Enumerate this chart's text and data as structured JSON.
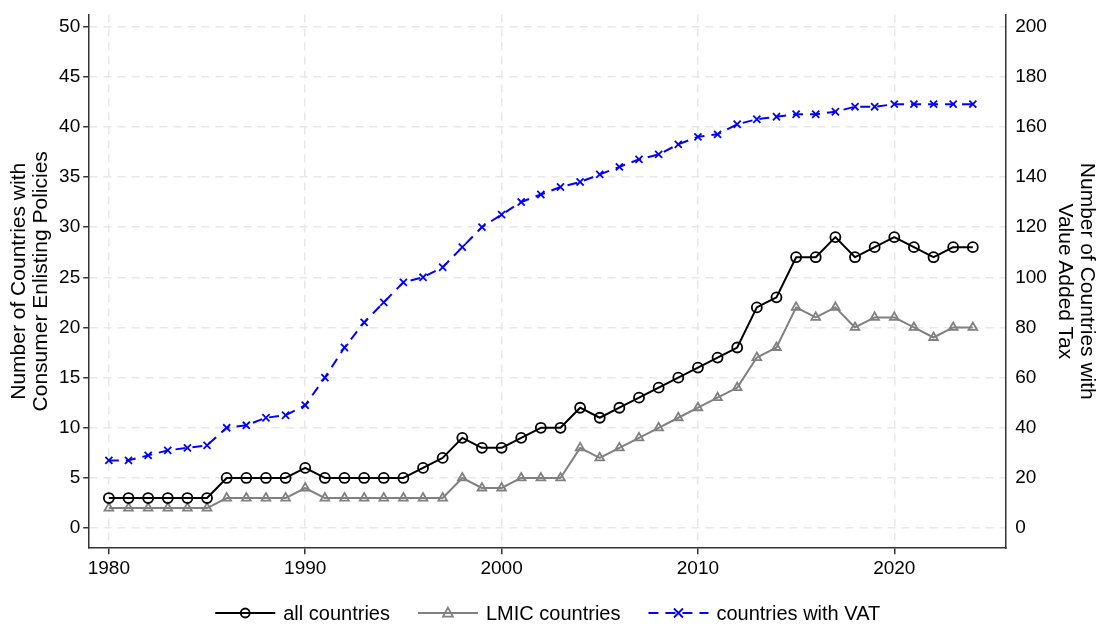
{
  "chart_data": {
    "type": "line",
    "ylabel": "Number of Countries with\nConsumer Enlisting Policies",
    "y2label": "Number of Countries with\nValue Added Tax",
    "x": [
      1980,
      1981,
      1982,
      1983,
      1984,
      1985,
      1986,
      1987,
      1988,
      1989,
      1990,
      1991,
      1992,
      1993,
      1994,
      1995,
      1996,
      1997,
      1998,
      1999,
      2000,
      2001,
      2002,
      2003,
      2004,
      2005,
      2006,
      2007,
      2008,
      2009,
      2010,
      2011,
      2012,
      2013,
      2014,
      2015,
      2016,
      2017,
      2018,
      2019,
      2020,
      2021,
      2022,
      2023,
      2024
    ],
    "series": [
      {
        "name": "all countries",
        "color": "#000000",
        "marker": "circle",
        "line_style": "solid",
        "values": [
          3,
          3,
          3,
          3,
          3,
          3,
          5,
          5,
          5,
          5,
          6,
          5,
          5,
          5,
          5,
          5,
          6,
          7,
          9,
          8,
          8,
          9,
          10,
          10,
          12,
          11,
          12,
          13,
          14,
          15,
          16,
          17,
          18,
          22,
          23,
          27,
          27,
          29,
          27,
          28,
          29,
          28,
          27,
          28,
          28
        ]
      },
      {
        "name": "LMIC countries",
        "color": "#808080",
        "marker": "triangle",
        "line_style": "solid",
        "values": [
          2,
          2,
          2,
          2,
          2,
          2,
          3,
          3,
          3,
          3,
          4,
          3,
          3,
          3,
          3,
          3,
          3,
          3,
          5,
          4,
          4,
          5,
          5,
          5,
          8,
          7,
          8,
          9,
          10,
          11,
          12,
          13,
          14,
          17,
          18,
          22,
          21,
          22,
          20,
          21,
          21,
          20,
          19,
          20,
          20
        ]
      },
      {
        "name": "countries with VAT",
        "color": "#0000ff",
        "marker": "cross",
        "line_style": "dashed",
        "axis": "y2",
        "values": [
          27,
          27,
          29,
          31,
          32,
          33,
          40,
          41,
          44,
          45,
          49,
          60,
          72,
          82,
          90,
          98,
          100,
          104,
          112,
          120,
          125,
          130,
          133,
          136,
          138,
          141,
          144,
          147,
          149,
          153,
          156,
          157,
          161,
          163,
          164,
          165,
          165,
          166,
          168,
          168,
          169,
          169,
          169,
          169,
          169
        ]
      }
    ],
    "xlim": [
      1979,
      2025.7
    ],
    "xticks": [
      1980,
      1990,
      2000,
      2010,
      2020
    ],
    "ylim": [
      -2,
      51.2
    ],
    "yticks": [
      0,
      5,
      10,
      15,
      20,
      25,
      30,
      35,
      40,
      45,
      50
    ],
    "y2lim": [
      -8,
      204.8
    ],
    "y2ticks": [
      0,
      20,
      40,
      60,
      80,
      100,
      120,
      140,
      160,
      180,
      200
    ],
    "grid": true,
    "legend": "bottom"
  }
}
